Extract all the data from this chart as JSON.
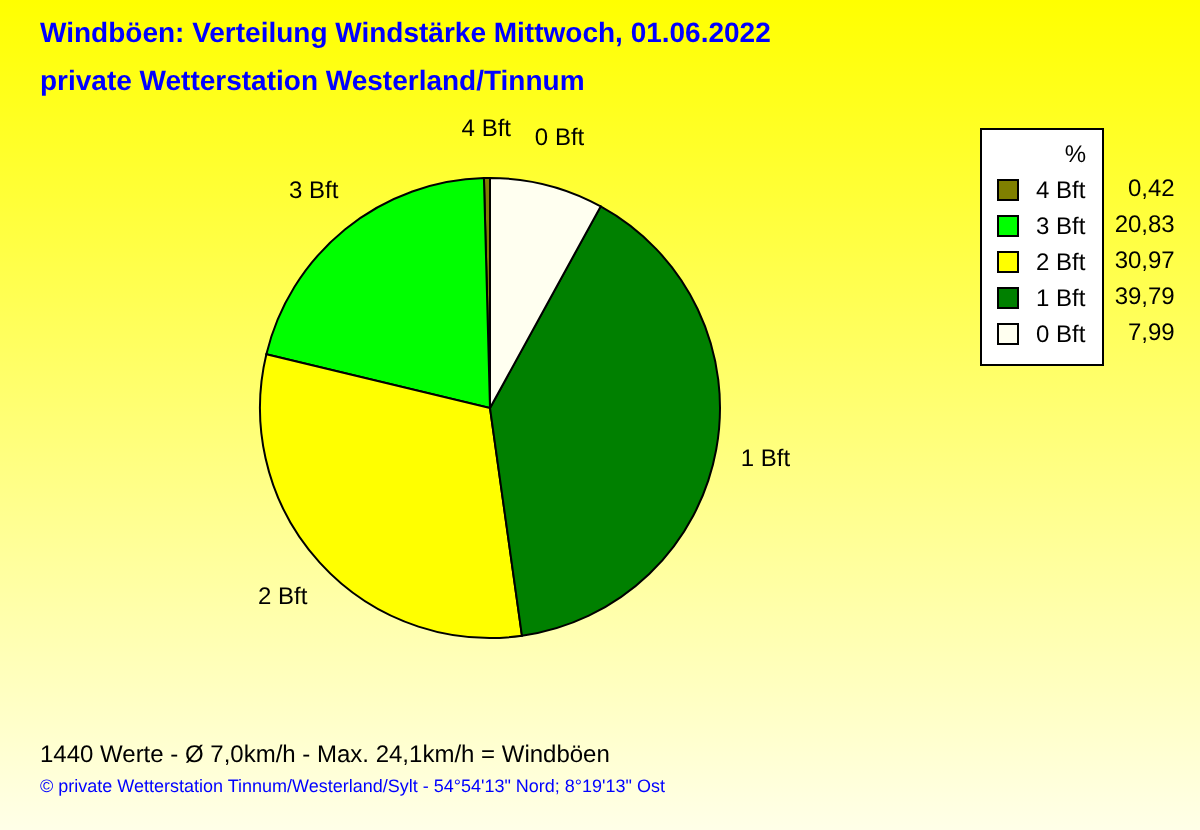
{
  "chart_data": {
    "type": "pie",
    "title": "Windböen: Verteilung Windstärke  Mittwoch, 01.06.2022",
    "subtitle": "private Wetterstation Westerland/Tinnum",
    "legend_title": "%",
    "categories": [
      "4 Bft",
      "3 Bft",
      "2 Bft",
      "1 Bft",
      "0 Bft"
    ],
    "values": [
      0.42,
      20.83,
      30.97,
      39.79,
      7.99
    ],
    "value_labels": [
      "0,42",
      "20,83",
      "30,97",
      "39,79",
      "7,99"
    ],
    "colors": [
      "#808000",
      "#00ff00",
      "#ffff00",
      "#008000",
      "#fffff0"
    ],
    "legend": "top right",
    "annotations": [
      "1440 Werte   -   Ø 7,0km/h  -  Max. 24,1km/h = Windböen",
      "© private Wetterstation Tinnum/Westerland/Sylt   -   54°54'13\" Nord; 8°19'13\" Ost"
    ]
  }
}
